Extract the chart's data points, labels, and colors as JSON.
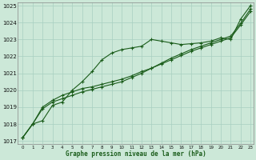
{
  "title": "Graphe pression niveau de la mer (hPa)",
  "bg_color": "#cce8d8",
  "grid_color": "#a8cfc0",
  "line_color": "#1a5c1a",
  "x_min": 0,
  "x_max": 23,
  "y_min": 1017,
  "y_max": 1025,
  "x_ticks": [
    0,
    1,
    2,
    3,
    4,
    5,
    6,
    7,
    8,
    9,
    10,
    11,
    12,
    13,
    14,
    15,
    16,
    17,
    18,
    19,
    20,
    21,
    22,
    23
  ],
  "y_ticks": [
    1017,
    1018,
    1019,
    1020,
    1021,
    1022,
    1023,
    1024,
    1025
  ],
  "line1": [
    1017.2,
    1018.0,
    1018.2,
    1019.1,
    1019.3,
    1020.0,
    1020.5,
    1021.1,
    1021.8,
    1022.2,
    1022.4,
    1022.5,
    1022.6,
    1023.0,
    1022.9,
    1022.8,
    1022.7,
    1022.75,
    1022.8,
    1022.9,
    1023.1,
    1023.0,
    1024.2,
    1025.0
  ],
  "line2": [
    1017.2,
    1018.0,
    1018.9,
    1019.3,
    1019.5,
    1019.7,
    1019.9,
    1020.05,
    1020.2,
    1020.35,
    1020.5,
    1020.75,
    1021.0,
    1021.3,
    1021.6,
    1021.9,
    1022.15,
    1022.4,
    1022.6,
    1022.8,
    1023.0,
    1023.2,
    1023.95,
    1024.8
  ],
  "line3": [
    1017.2,
    1018.0,
    1019.0,
    1019.4,
    1019.7,
    1019.9,
    1020.1,
    1020.2,
    1020.35,
    1020.5,
    1020.65,
    1020.85,
    1021.1,
    1021.3,
    1021.55,
    1021.8,
    1022.05,
    1022.3,
    1022.5,
    1022.7,
    1022.9,
    1023.1,
    1023.85,
    1024.65
  ]
}
